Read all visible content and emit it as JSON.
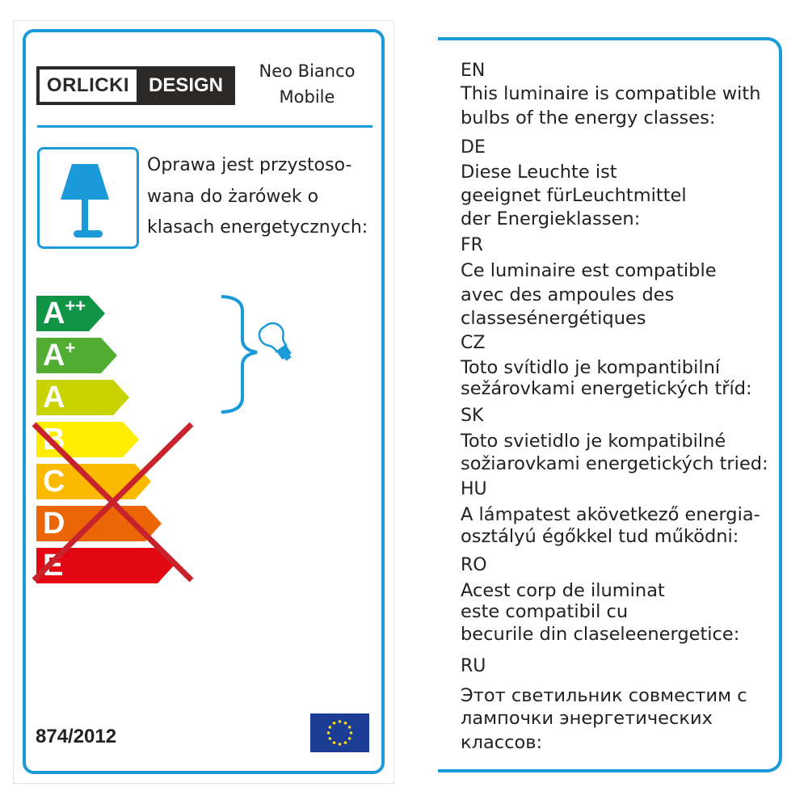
{
  "brand": {
    "logo_left": "ORLICKI",
    "logo_right": "DESIGN"
  },
  "product": {
    "line1": "Neo Bianco",
    "line2": "Mobile"
  },
  "polish_text": [
    "Oprawa jest przystoso-",
    "wana do żarówek o",
    "klasach energetycznych:"
  ],
  "energy_classes": [
    {
      "label": "A",
      "sup": "++",
      "color": "#109446",
      "compatible": true
    },
    {
      "label": "A",
      "sup": "+",
      "color": "#51ae32",
      "compatible": true
    },
    {
      "label": "A",
      "sup": "",
      "color": "#c8d300",
      "compatible": true
    },
    {
      "label": "B",
      "sup": "",
      "color": "#ffed00",
      "compatible": false
    },
    {
      "label": "C",
      "sup": "",
      "color": "#fbba00",
      "compatible": false
    },
    {
      "label": "D",
      "sup": "",
      "color": "#ec6608",
      "compatible": false
    },
    {
      "label": "E",
      "sup": "",
      "color": "#e30613",
      "compatible": false
    }
  ],
  "regulation": "874/2012",
  "colors": {
    "accent": "#1a9ad9",
    "cross": "#c8232c"
  },
  "icons": [
    "lamp-icon",
    "bulb-icon",
    "brace-icon",
    "eu-flag-icon",
    "cross-out-icon"
  ],
  "translations": [
    {
      "code": "EN",
      "lines": [
        "This luminaire is compatible with",
        "bulbs of the energy classes:"
      ]
    },
    {
      "code": "DE",
      "lines": [
        "Diese Leuchte ist",
        "geeignet fürLeuchtmittel",
        "der Energieklassen:"
      ]
    },
    {
      "code": "FR",
      "lines": [
        "Ce luminaire est compatible",
        "avec des ampoules des",
        "classesénergétiques"
      ]
    },
    {
      "code": "CZ",
      "lines": [
        "Toto svítidlo je kompantibilní",
        "sežárovkami energetických tříd:"
      ]
    },
    {
      "code": "SK",
      "lines": [
        "Toto svietidlo je kompatibilné",
        "sožiarovkami energetických tried:"
      ]
    },
    {
      "code": "HU",
      "lines": [
        "A lámpatest akövetkező energia-",
        "osztályú égőkkel tud működni:"
      ]
    },
    {
      "code": "RO",
      "lines": [
        "Acest corp de iluminat",
        "este compatibil cu",
        "becurile din claseleenergetice:"
      ]
    },
    {
      "code": "RU",
      "lines": [
        "Этот светильник совместим с",
        "лампочки энергетических",
        "классов:"
      ]
    }
  ]
}
